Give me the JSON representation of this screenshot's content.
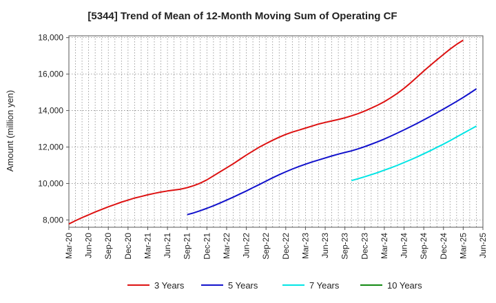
{
  "chart_data": {
    "type": "line",
    "title": "[5344]  Trend of Mean of 12-Month Moving Sum of Operating CF",
    "xlabel": "",
    "ylabel": "Amount (million yen)",
    "ylim": [
      7600,
      18100
    ],
    "yticks": [
      8000,
      10000,
      12000,
      14000,
      16000,
      18000
    ],
    "ytick_labels": [
      "8,000",
      "10,000",
      "12,000",
      "14,000",
      "16,000",
      "18,000"
    ],
    "x_start": "Mar-20",
    "x_months": 63,
    "xtick_labels": [
      "Mar-20",
      "Jun-20",
      "Sep-20",
      "Dec-20",
      "Mar-21",
      "Jun-21",
      "Sep-21",
      "Dec-21",
      "Mar-22",
      "Jun-22",
      "Sep-22",
      "Dec-22",
      "Mar-23",
      "Jun-23",
      "Sep-23",
      "Dec-23",
      "Mar-24",
      "Jun-24",
      "Sep-24",
      "Dec-24",
      "Mar-25",
      "Jun-25"
    ],
    "grid": true,
    "legend_position": "bottom",
    "series": [
      {
        "name": "3 Years",
        "color": "#dd1111",
        "start_index": 0,
        "values": [
          7780,
          7960,
          8130,
          8280,
          8440,
          8580,
          8720,
          8850,
          8980,
          9090,
          9200,
          9290,
          9380,
          9460,
          9530,
          9590,
          9640,
          9690,
          9770,
          9880,
          10020,
          10200,
          10420,
          10640,
          10860,
          11080,
          11320,
          11560,
          11780,
          12000,
          12190,
          12370,
          12540,
          12690,
          12820,
          12930,
          13040,
          13150,
          13260,
          13350,
          13430,
          13510,
          13600,
          13710,
          13830,
          13970,
          14130,
          14300,
          14490,
          14710,
          14950,
          15220,
          15520,
          15840,
          16170,
          16480,
          16780,
          17080,
          17370,
          17630,
          17860
        ]
      },
      {
        "name": "5 Years",
        "color": "#1111cc",
        "start_index": 18,
        "values": [
          8290,
          8390,
          8510,
          8640,
          8780,
          8930,
          9090,
          9250,
          9420,
          9590,
          9770,
          9950,
          10130,
          10310,
          10480,
          10640,
          10790,
          10930,
          11060,
          11180,
          11290,
          11400,
          11510,
          11610,
          11700,
          11790,
          11900,
          12020,
          12150,
          12290,
          12440,
          12600,
          12770,
          12940,
          13120,
          13300,
          13490,
          13680,
          13880,
          14080,
          14290,
          14500,
          14720,
          14950,
          15190
        ]
      },
      {
        "name": "7 Years",
        "color": "#00e5e5",
        "start_index": 43,
        "values": [
          10160,
          10260,
          10370,
          10480,
          10600,
          10730,
          10860,
          11000,
          11150,
          11300,
          11460,
          11630,
          11800,
          11980,
          12160,
          12350,
          12550,
          12750,
          12950,
          13150
        ]
      },
      {
        "name": "10 Years",
        "color": "#118811",
        "start_index": 63,
        "values": []
      }
    ]
  }
}
